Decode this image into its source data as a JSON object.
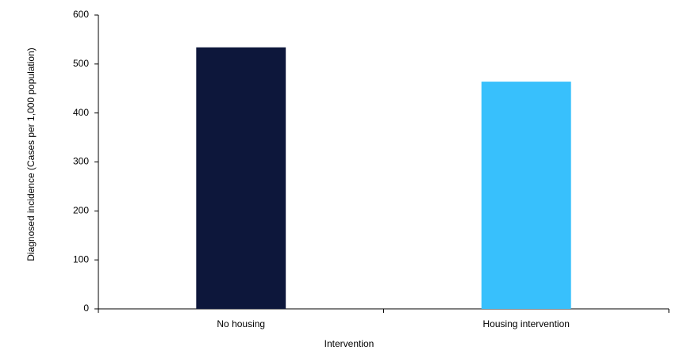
{
  "chart_data": {
    "type": "bar",
    "x_label": "Intervention",
    "y_label": "Diagnosed incidence (Cases per 1,000 population)",
    "categories": [
      "No housing",
      "Housing intervention"
    ],
    "values": [
      534,
      464
    ],
    "colors": [
      "#0d173b",
      "#38c0fc"
    ],
    "ylim": [
      0,
      600
    ],
    "yticks": [
      0,
      100,
      200,
      300,
      400,
      500,
      600
    ],
    "grid": false
  }
}
